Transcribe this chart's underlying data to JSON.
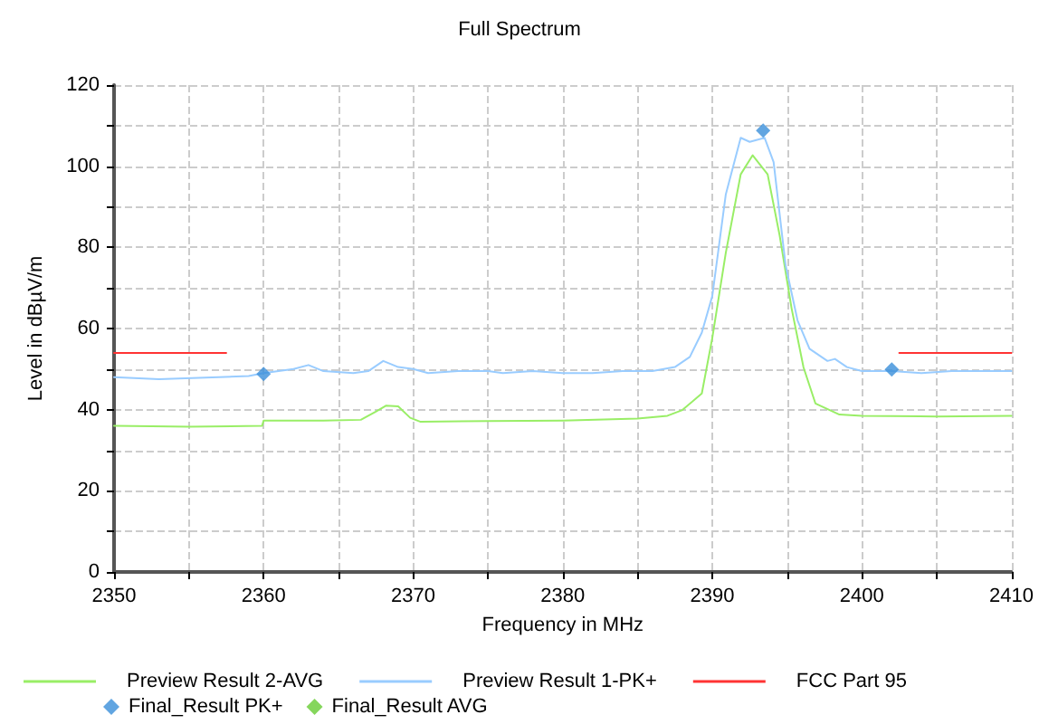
{
  "chart_data": {
    "type": "line",
    "title": "Full Spectrum",
    "xlabel": "Frequency in MHz",
    "ylabel": "Level in dBµV/m",
    "xlim": [
      2350,
      2410
    ],
    "ylim": [
      0,
      120
    ],
    "xticks": [
      2350,
      {
        "value": 2355,
        "label": null
      },
      2360,
      {
        "value": 2365,
        "label": null
      },
      2370,
      {
        "value": 2375,
        "label": null
      },
      2380,
      {
        "value": 2385,
        "label": null
      },
      2390,
      {
        "value": 2395,
        "label": null
      },
      2400,
      {
        "value": 2405,
        "label": null
      },
      2410
    ],
    "yticks": [
      0,
      {
        "value": 10,
        "label": null
      },
      20,
      {
        "value": 30,
        "label": null
      },
      40,
      {
        "value": 50,
        "label": null
      },
      60,
      {
        "value": 70,
        "label": null
      },
      80,
      {
        "value": 90,
        "label": null
      },
      100,
      {
        "value": 110,
        "label": null
      },
      120
    ],
    "grid": true,
    "legend": "bottom",
    "line_style": "solid",
    "series": [
      {
        "name": "Preview Result 2-AVG",
        "color": "#99ee66",
        "x": [
          2350,
          2355,
          2359.9,
          2360,
          2364,
          2366.5,
          2367.5,
          2368.2,
          2369,
          2369.8,
          2370.5,
          2375,
          2380,
          2385,
          2387,
          2388,
          2389.3,
          2390,
          2390.9,
          2391.9,
          2392.7,
          2393.7,
          2394.5,
          2395.3,
          2396.1,
          2396.9,
          2398.5,
          2400,
          2405,
          2410
        ],
        "values": [
          36,
          35.8,
          36,
          37.3,
          37.3,
          37.5,
          39.5,
          41,
          40.8,
          38,
          37,
          37.2,
          37.3,
          37.8,
          38.5,
          39.9,
          44,
          57.7,
          78.6,
          98,
          102.7,
          98,
          83,
          65,
          50.4,
          41.5,
          38.8,
          38.5,
          38.3,
          38.5
        ]
      },
      {
        "name": "Preview Result 1-PK+",
        "color": "#99ccff",
        "x": [
          2350,
          2353,
          2357,
          2359,
          2360,
          2361,
          2362,
          2363,
          2364,
          2366,
          2367,
          2368,
          2369,
          2370,
          2371,
          2373,
          2375,
          2376,
          2378,
          2380,
          2382,
          2384,
          2386,
          2387.5,
          2388.5,
          2389.3,
          2390,
          2390.9,
          2391.9,
          2392.5,
          2393,
          2393.5,
          2394.1,
          2394.9,
          2395.7,
          2396.5,
          2397.7,
          2398.2,
          2399,
          2400,
          2402,
          2404,
          2406,
          2408,
          2410
        ],
        "values": [
          48,
          47.5,
          48,
          48.3,
          49,
          49.5,
          50,
          51,
          49.5,
          49,
          49.5,
          52,
          50.5,
          50,
          49,
          49.5,
          49.5,
          49,
          49.5,
          49,
          49,
          49.5,
          49.5,
          50.5,
          53,
          59,
          68,
          93,
          107,
          106,
          106.5,
          107,
          101,
          75.6,
          62,
          55,
          52,
          52.5,
          50.5,
          49.5,
          49.5,
          49,
          49.5,
          49.5,
          49.5
        ]
      },
      {
        "name": "FCC Part 95",
        "color": "#ff3333",
        "x": [
          2350,
          2357.5,
          2380,
          2402.5,
          2410
        ],
        "values": [
          54,
          54,
          null,
          54,
          54
        ]
      },
      {
        "name": "Final_Result PK+",
        "type": "scatter",
        "marker": "diamond",
        "color": "#3a8fd9",
        "x": [
          2360,
          2393.4,
          2402
        ],
        "values": [
          48.8,
          108.8,
          49.9
        ]
      },
      {
        "name": "Final_Result AVG",
        "type": "scatter",
        "marker": "diamond",
        "color": "#66cc33"
      }
    ]
  }
}
